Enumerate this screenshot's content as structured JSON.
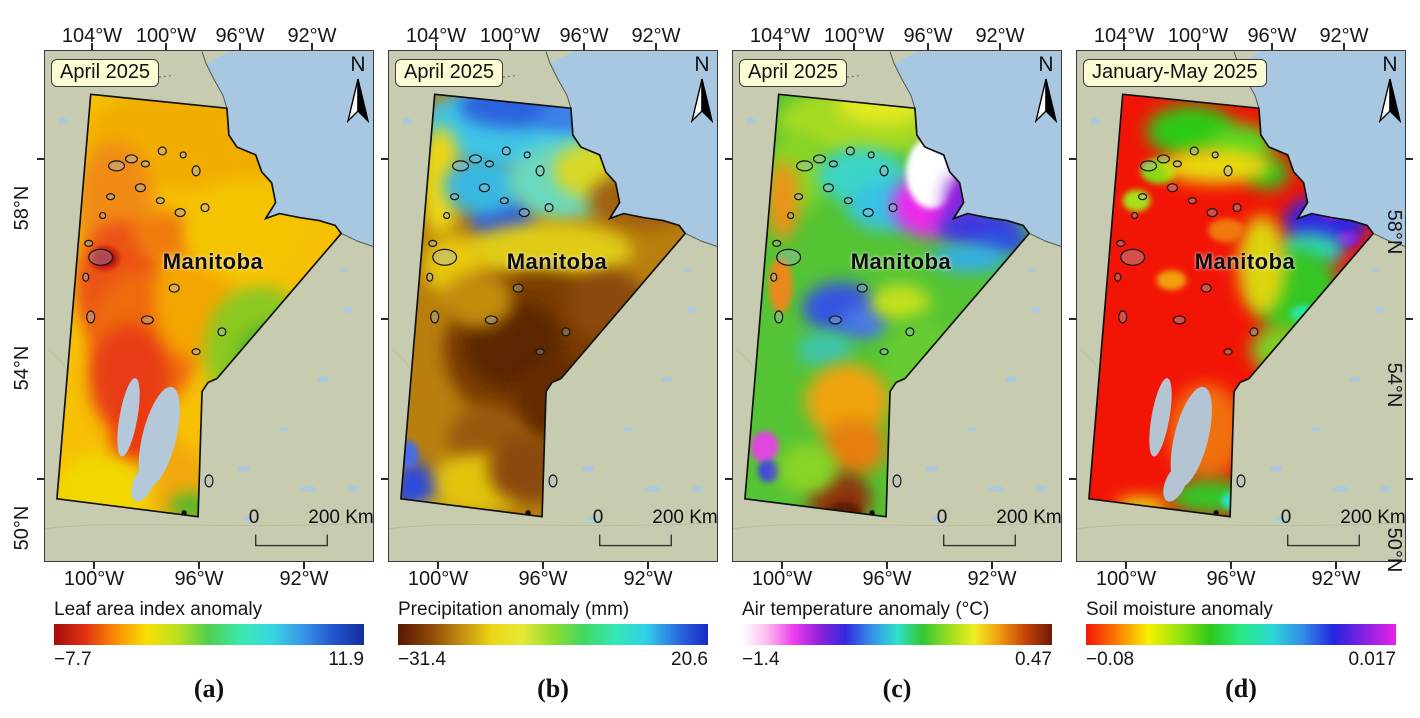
{
  "figure": {
    "region_label": "Manitoba",
    "north_label": "N",
    "scale": {
      "zero": "0",
      "distance": "200 Km"
    },
    "colors": {
      "land": "#c7ccb1",
      "water": "#a8c8e2",
      "badge_background": "#fcfcd4",
      "lake_fill": "#b4c8da"
    },
    "axes": {
      "top_labels": [
        "104°W",
        "100°W",
        "96°W",
        "92°W"
      ],
      "bottom_labels": [
        "100°W",
        "96°W",
        "92°W"
      ],
      "left_labels": [
        "58°N",
        "54°N",
        "50°N"
      ],
      "right_labels": [
        "58°N",
        "54°N",
        "50°N"
      ]
    },
    "panels": [
      {
        "id": "a",
        "letter": "(a)",
        "title": "April 2025",
        "colorbar": {
          "label": "Leaf area index anomaly",
          "min": "−7.7",
          "max": "11.9",
          "stops": [
            "#a50d0d",
            "#e03111",
            "#fb8e04",
            "#f8e004",
            "#b8e020",
            "#4ed04e",
            "#3ce8b0",
            "#38d8e0",
            "#3898e8",
            "#2255cc",
            "#132f9e"
          ]
        }
      },
      {
        "id": "b",
        "letter": "(b)",
        "title": "April 2025",
        "colorbar": {
          "label": "Precipitation anomaly (mm)",
          "min": "−31.4",
          "max": "20.6",
          "stops": [
            "#571803",
            "#8a4606",
            "#c08a10",
            "#ecd414",
            "#e8e838",
            "#90dc30",
            "#40d860",
            "#34e8b4",
            "#30d0e8",
            "#2c6ee0",
            "#1828c8"
          ]
        }
      },
      {
        "id": "c",
        "letter": "(c)",
        "title": "April 2025",
        "colorbar": {
          "label": "Air temperature anomaly (°C)",
          "min": "−1.4",
          "max": "0.47",
          "stops": [
            "#ffffff",
            "#fbb8f0",
            "#ee3cee",
            "#9020dc",
            "#3428e0",
            "#3390e8",
            "#30e0cc",
            "#32c832",
            "#98dc20",
            "#f0ee20",
            "#f09810",
            "#c24208",
            "#6e1a04"
          ]
        }
      },
      {
        "id": "d",
        "letter": "(d)",
        "title": "January-May 2025",
        "colorbar": {
          "label": "Soil moisture anomaly",
          "min": "−0.08",
          "max": "0.017",
          "stops": [
            "#f31507",
            "#fb7c02",
            "#f8f000",
            "#98e410",
            "#2ec818",
            "#2ae884",
            "#2cd8d8",
            "#338ce8",
            "#2424e0",
            "#8822e2",
            "#ea22ea"
          ]
        }
      }
    ]
  }
}
